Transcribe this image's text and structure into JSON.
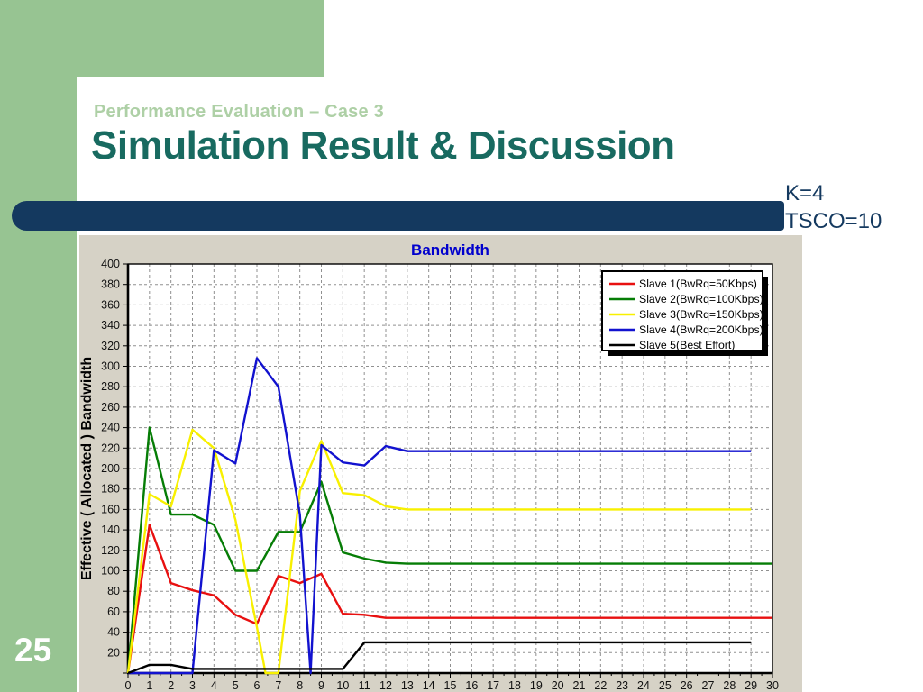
{
  "slide": {
    "number": "25",
    "eyebrow": "Performance Evaluation – Case 3",
    "title": "Simulation Result & Discussion",
    "params": [
      "K=4",
      "TSCO=10"
    ],
    "colors": {
      "green_band": "#97c492",
      "eyebrow_green": "#aed0a6",
      "title_teal": "#186a60",
      "navy": "#14395f"
    }
  },
  "chart_data": {
    "type": "line",
    "title": "Bandwidth",
    "title_color": "#0000cd",
    "ylabel": "Effective ( Allocated ) Bandwidth",
    "xlabel": "",
    "xlim": [
      0,
      30
    ],
    "ylim": [
      0,
      400
    ],
    "xtick_step": 1,
    "ytick_step": 20,
    "grid": true,
    "grid_style": "dashed",
    "legend_position": "top-right",
    "panel_bg": "#d6d2c6",
    "plot_bg": "#ffffff",
    "series": [
      {
        "name": "Slave 1(BwRq=50Kbps)",
        "color": "#e81010",
        "points": [
          [
            0,
            0
          ],
          [
            1,
            145
          ],
          [
            2,
            88
          ],
          [
            3,
            81
          ],
          [
            4,
            76
          ],
          [
            5,
            57
          ],
          [
            6,
            48
          ],
          [
            7,
            95
          ],
          [
            8,
            88
          ],
          [
            9,
            97
          ],
          [
            10,
            58
          ],
          [
            11,
            57
          ],
          [
            12,
            54
          ],
          [
            30,
            54
          ]
        ]
      },
      {
        "name": "Slave 2(BwRq=100Kbps)",
        "color": "#067d06",
        "points": [
          [
            0,
            0
          ],
          [
            1,
            240
          ],
          [
            2,
            155
          ],
          [
            3,
            155
          ],
          [
            4,
            145
          ],
          [
            5,
            100
          ],
          [
            6,
            100
          ],
          [
            7,
            138
          ],
          [
            8,
            138
          ],
          [
            9,
            187
          ],
          [
            10,
            118
          ],
          [
            11,
            112
          ],
          [
            12,
            108
          ],
          [
            13,
            107
          ],
          [
            30,
            107
          ]
        ]
      },
      {
        "name": "Slave 3(BwRq=150Kbps)",
        "color": "#f8f000",
        "points": [
          [
            0,
            0
          ],
          [
            1,
            175
          ],
          [
            2,
            163
          ],
          [
            3,
            238
          ],
          [
            4,
            220
          ],
          [
            5,
            150
          ],
          [
            6,
            45
          ],
          [
            6.4,
            0
          ],
          [
            7,
            0
          ],
          [
            8,
            178
          ],
          [
            9,
            227
          ],
          [
            10,
            176
          ],
          [
            11,
            174
          ],
          [
            12,
            163
          ],
          [
            13,
            160
          ],
          [
            29,
            160
          ]
        ]
      },
      {
        "name": "Slave 4(BwRq=200Kbps)",
        "color": "#1212cf",
        "points": [
          [
            0,
            0
          ],
          [
            3,
            0
          ],
          [
            4,
            218
          ],
          [
            5,
            205
          ],
          [
            6,
            308
          ],
          [
            7,
            280
          ],
          [
            8,
            155
          ],
          [
            8.5,
            0
          ],
          [
            9,
            223
          ],
          [
            10,
            206
          ],
          [
            11,
            203
          ],
          [
            12,
            222
          ],
          [
            13,
            217
          ],
          [
            29,
            217
          ]
        ]
      },
      {
        "name": "Slave 5(Best Effort)",
        "color": "#000000",
        "points": [
          [
            0,
            0
          ],
          [
            1,
            8
          ],
          [
            2,
            8
          ],
          [
            3,
            4
          ],
          [
            10,
            4
          ],
          [
            11,
            30
          ],
          [
            29,
            30
          ]
        ]
      }
    ]
  }
}
